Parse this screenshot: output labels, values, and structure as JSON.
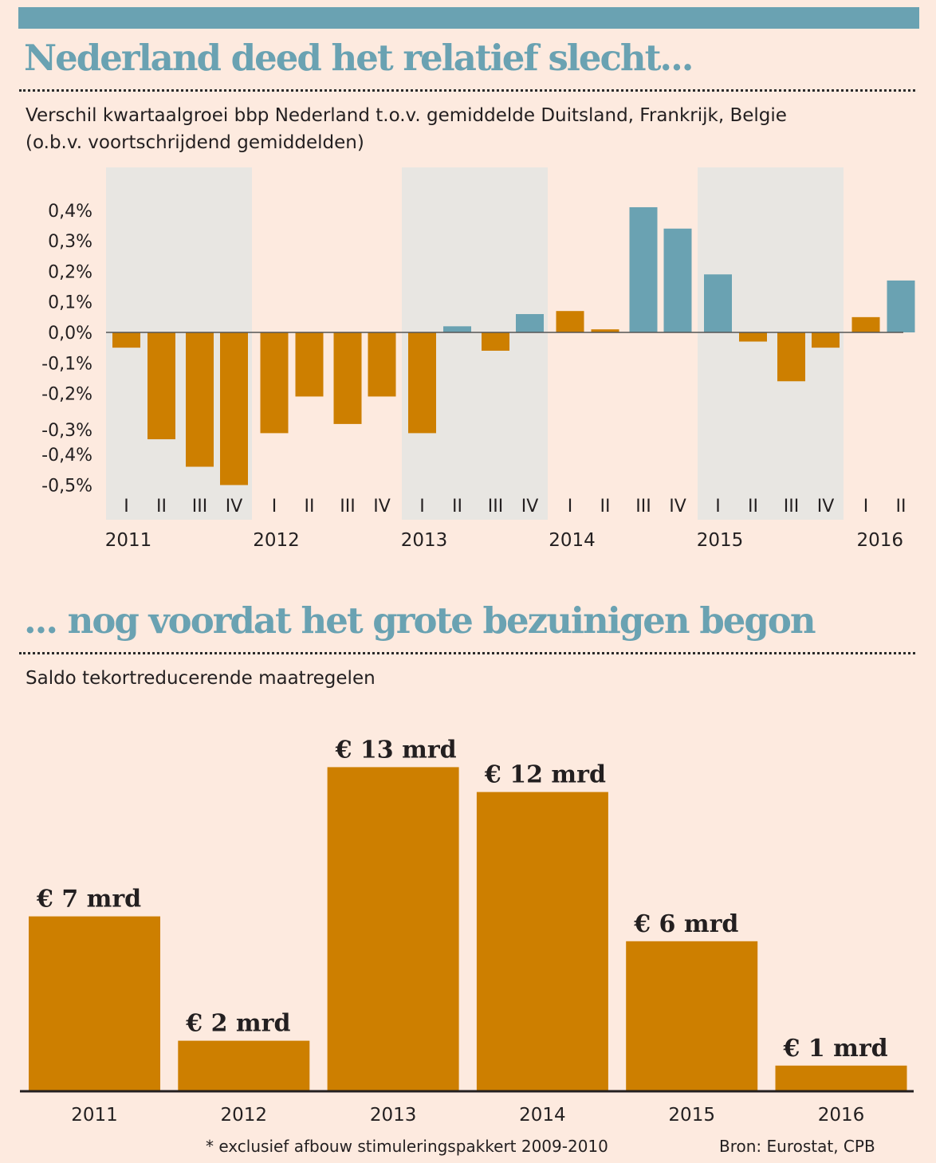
{
  "colors": {
    "accent": "#6aa2b2",
    "negative": "#cd7f00",
    "shade": "#e8e6e2",
    "background": "#fdeadf",
    "text": "#231f20"
  },
  "section1": {
    "title": "Nederland deed het relatief slecht...",
    "subtitle": "Verschil kwartaalgroei bbp Nederland t.o.v. gemiddelde Duitsland, Frankrijk, Belgie (o.b.v. voortschrijdend gemiddelden)"
  },
  "section2": {
    "title": "... nog voordat het grote bezuinigen begon",
    "subtitle": "Saldo tekortreducerende maatregelen"
  },
  "footer": {
    "note": "* exclusief afbouw stimuleringspakkert 2009-2010",
    "source": "Bron: Eurostat, CPB"
  },
  "chart_data": [
    {
      "type": "bar",
      "title": "Nederland deed het relatief slecht...",
      "subtitle": "Verschil kwartaalgroei bbp Nederland t.o.v. gemiddelde Duitsland, Frankrijk, Belgie (o.b.v. voortschrijdend gemiddelden)",
      "xlabel": "",
      "ylabel": "",
      "ylim": [
        -0.5,
        0.4
      ],
      "y_ticks": [
        "0,4%",
        "0,3%",
        "0,2%",
        "0,1%",
        "0,0%",
        "-0,1%",
        "-0,2%",
        "-0,3%",
        "-0,4%",
        "-0,5%"
      ],
      "y_tick_values": [
        0.4,
        0.3,
        0.2,
        0.1,
        0.0,
        -0.1,
        -0.2,
        -0.3,
        -0.4,
        -0.5
      ],
      "unit": "%",
      "grid": false,
      "shaded_years": [
        "2011",
        "2013",
        "2015"
      ],
      "color_rule": "bars above zero in accent color from 2013 II onward except 2014 I, 2014 II and 2016 I, which are in orange",
      "years": [
        {
          "year": "2011",
          "quarters": [
            {
              "q": "I",
              "value": -0.05,
              "color": "orange"
            },
            {
              "q": "II",
              "value": -0.35,
              "color": "orange"
            },
            {
              "q": "III",
              "value": -0.44,
              "color": "orange"
            },
            {
              "q": "IV",
              "value": -0.5,
              "color": "orange"
            }
          ]
        },
        {
          "year": "2012",
          "quarters": [
            {
              "q": "I",
              "value": -0.33,
              "color": "orange"
            },
            {
              "q": "II",
              "value": -0.21,
              "color": "orange"
            },
            {
              "q": "III",
              "value": -0.3,
              "color": "orange"
            },
            {
              "q": "IV",
              "value": -0.21,
              "color": "orange"
            }
          ]
        },
        {
          "year": "2013",
          "quarters": [
            {
              "q": "I",
              "value": -0.33,
              "color": "orange"
            },
            {
              "q": "II",
              "value": 0.02,
              "color": "blue"
            },
            {
              "q": "III",
              "value": -0.06,
              "color": "orange"
            },
            {
              "q": "IV",
              "value": 0.06,
              "color": "blue"
            }
          ]
        },
        {
          "year": "2014",
          "quarters": [
            {
              "q": "I",
              "value": 0.07,
              "color": "orange"
            },
            {
              "q": "II",
              "value": 0.01,
              "color": "orange"
            },
            {
              "q": "III",
              "value": 0.41,
              "color": "blue"
            },
            {
              "q": "IV",
              "value": 0.34,
              "color": "blue"
            }
          ]
        },
        {
          "year": "2015",
          "quarters": [
            {
              "q": "I",
              "value": 0.19,
              "color": "blue"
            },
            {
              "q": "II",
              "value": -0.03,
              "color": "orange"
            },
            {
              "q": "III",
              "value": -0.16,
              "color": "orange"
            },
            {
              "q": "IV",
              "value": -0.05,
              "color": "orange"
            }
          ]
        },
        {
          "year": "2016",
          "quarters": [
            {
              "q": "I",
              "value": 0.05,
              "color": "orange"
            },
            {
              "q": "II",
              "value": 0.17,
              "color": "blue"
            }
          ]
        }
      ]
    },
    {
      "type": "bar",
      "title": "... nog voordat het grote bezuinigen begon",
      "subtitle": "Saldo tekortreducerende maatregelen",
      "xlabel": "",
      "ylabel": "",
      "unit": "mrd euro",
      "ylim": [
        0,
        13
      ],
      "grid": false,
      "categories": [
        "2011",
        "2012",
        "2013",
        "2014",
        "2015",
        "2016"
      ],
      "values": [
        7,
        2,
        13,
        12,
        6,
        1
      ],
      "data_labels": [
        "€ 7 mrd",
        "€ 2 mrd",
        "€ 13 mrd",
        "€ 12 mrd",
        "€ 6 mrd",
        "€ 1 mrd"
      ]
    }
  ]
}
